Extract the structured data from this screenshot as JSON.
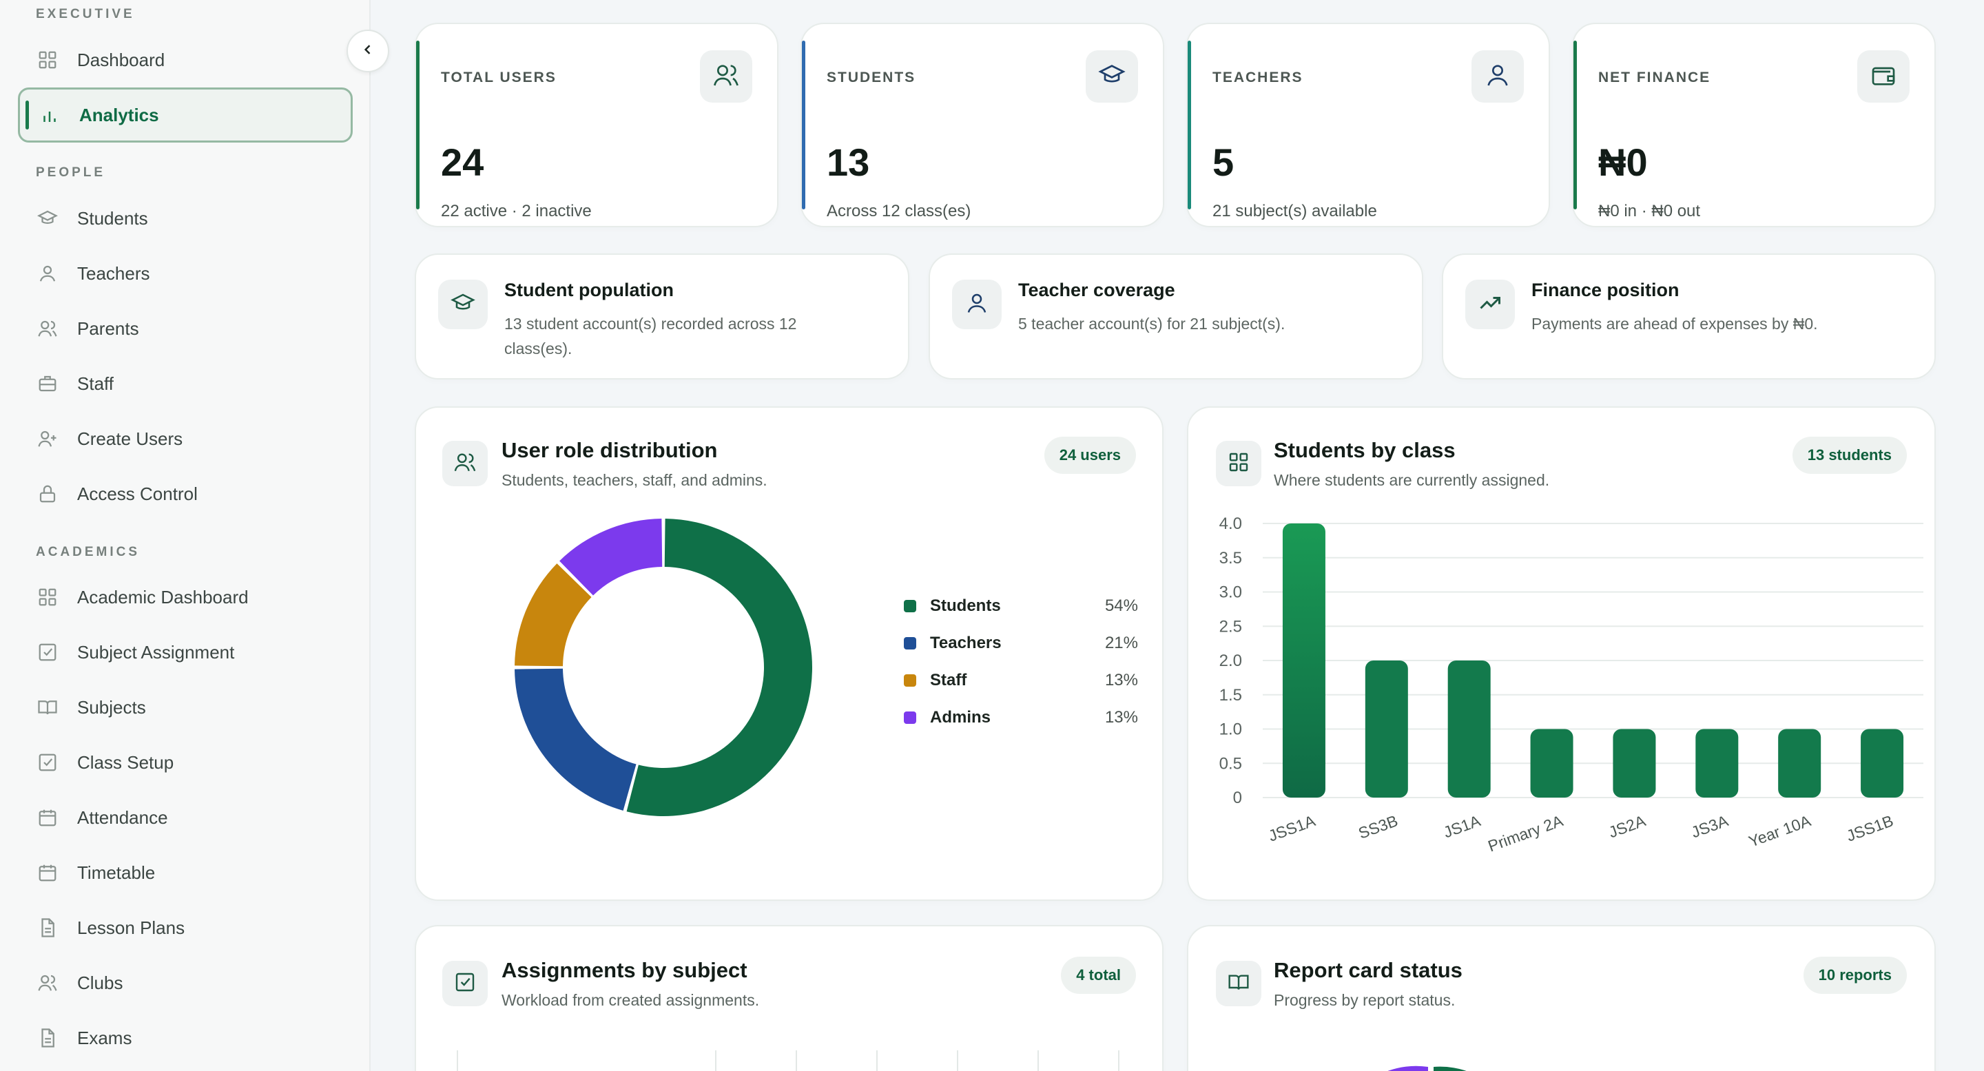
{
  "sidebar": {
    "sections": {
      "executive": "EXECUTIVE",
      "people": "PEOPLE",
      "academics": "ACADEMICS"
    },
    "items": [
      {
        "label": "Dashboard",
        "icon": "grid-icon"
      },
      {
        "label": "Analytics",
        "icon": "bar-chart-icon",
        "active": true
      },
      {
        "label": "Students",
        "icon": "graduation-cap-icon"
      },
      {
        "label": "Teachers",
        "icon": "user-icon"
      },
      {
        "label": "Parents",
        "icon": "users-icon"
      },
      {
        "label": "Staff",
        "icon": "briefcase-icon"
      },
      {
        "label": "Create Users",
        "icon": "user-plus-icon"
      },
      {
        "label": "Access Control",
        "icon": "lock-icon"
      },
      {
        "label": "Academic Dashboard",
        "icon": "grid-icon"
      },
      {
        "label": "Subject Assignment",
        "icon": "checkbox-icon"
      },
      {
        "label": "Subjects",
        "icon": "book-icon"
      },
      {
        "label": "Class Setup",
        "icon": "checkbox-icon"
      },
      {
        "label": "Attendance",
        "icon": "calendar-icon"
      },
      {
        "label": "Timetable",
        "icon": "calendar-icon"
      },
      {
        "label": "Lesson Plans",
        "icon": "document-icon"
      },
      {
        "label": "Clubs",
        "icon": "users-icon"
      },
      {
        "label": "Exams",
        "icon": "document-icon"
      }
    ]
  },
  "stats": [
    {
      "label": "TOTAL USERS",
      "value": "24",
      "sub": "22 active · 2 inactive",
      "icon": "users-icon",
      "accent": "#1a7a4b"
    },
    {
      "label": "STUDENTS",
      "value": "13",
      "sub": "Across 12 class(es)",
      "icon": "graduation-cap-icon",
      "accent": "#2f6bb0"
    },
    {
      "label": "TEACHERS",
      "value": "5",
      "sub": "21 subject(s) available",
      "icon": "user-icon",
      "accent": "#1a8a7a"
    },
    {
      "label": "NET FINANCE",
      "value": "₦0",
      "sub": "₦0 in · ₦0 out",
      "icon": "wallet-icon",
      "accent": "#1a7a4b"
    }
  ],
  "insights": [
    {
      "title": "Student population",
      "body": "13 student account(s) recorded across 12 class(es).",
      "icon": "graduation-cap-icon"
    },
    {
      "title": "Teacher coverage",
      "body": "5 teacher account(s) for 21 subject(s).",
      "icon": "user-icon"
    },
    {
      "title": "Finance position",
      "body": "Payments are ahead of expenses by ₦0.",
      "icon": "trending-up-icon"
    }
  ],
  "panels": {
    "roles": {
      "title": "User role distribution",
      "subtitle": "Students, teachers, staff, and admins.",
      "badge": "24 users",
      "icon": "users-icon"
    },
    "classes": {
      "title": "Students by class",
      "subtitle": "Where students are currently assigned.",
      "badge": "13 students",
      "icon": "grid-icon"
    },
    "assignments": {
      "title": "Assignments by subject",
      "subtitle": "Workload from created assignments.",
      "badge": "4 total",
      "icon": "checkbox-icon"
    },
    "reports": {
      "title": "Report card status",
      "subtitle": "Progress by report status.",
      "badge": "10 reports",
      "icon": "book-icon"
    }
  },
  "colors": {
    "green": "#0f7048",
    "blue": "#1f4f97",
    "orange": "#c8860d",
    "purple": "#7c3aed"
  },
  "chart_data": [
    {
      "type": "pie",
      "categories": [
        "Students",
        "Teachers",
        "Staff",
        "Admins"
      ],
      "values": [
        13,
        5,
        3,
        3
      ],
      "labels": [
        "54%",
        "21%",
        "13%",
        "13%"
      ],
      "colors": [
        "#0f7048",
        "#1f4f97",
        "#c8860d",
        "#7c3aed"
      ]
    },
    {
      "type": "bar",
      "categories": [
        "JSS1A",
        "SS3B",
        "JS1A",
        "Primary 2A",
        "JS2A",
        "JS3A",
        "Year 10A",
        "JSS1B"
      ],
      "values": [
        4,
        2,
        2,
        1,
        1,
        1,
        1,
        1
      ],
      "ylim": [
        0,
        4
      ],
      "yticks": [
        "0",
        "0.5",
        "1.0",
        "1.5",
        "2.0",
        "2.5",
        "3.0",
        "3.5",
        "4.0"
      ],
      "grid": true
    }
  ]
}
